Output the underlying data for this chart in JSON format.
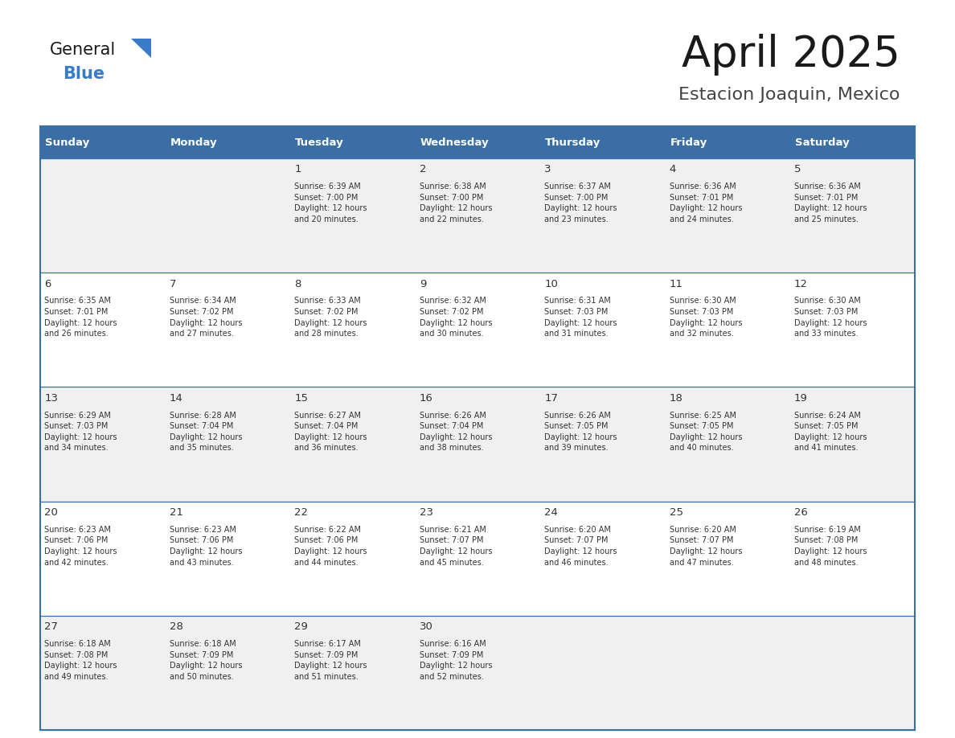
{
  "title": "April 2025",
  "subtitle": "Estacion Joaquin, Mexico",
  "header_color": "#3A6EA5",
  "header_text_color": "#FFFFFF",
  "cell_bg_even": "#F0F0F0",
  "cell_bg_odd": "#FFFFFF",
  "text_color": "#333333",
  "border_color": "#3A6EA5",
  "days_of_week": [
    "Sunday",
    "Monday",
    "Tuesday",
    "Wednesday",
    "Thursday",
    "Friday",
    "Saturday"
  ],
  "weeks": [
    [
      {
        "day": "",
        "info": ""
      },
      {
        "day": "",
        "info": ""
      },
      {
        "day": "1",
        "info": "Sunrise: 6:39 AM\nSunset: 7:00 PM\nDaylight: 12 hours\nand 20 minutes."
      },
      {
        "day": "2",
        "info": "Sunrise: 6:38 AM\nSunset: 7:00 PM\nDaylight: 12 hours\nand 22 minutes."
      },
      {
        "day": "3",
        "info": "Sunrise: 6:37 AM\nSunset: 7:00 PM\nDaylight: 12 hours\nand 23 minutes."
      },
      {
        "day": "4",
        "info": "Sunrise: 6:36 AM\nSunset: 7:01 PM\nDaylight: 12 hours\nand 24 minutes."
      },
      {
        "day": "5",
        "info": "Sunrise: 6:36 AM\nSunset: 7:01 PM\nDaylight: 12 hours\nand 25 minutes."
      }
    ],
    [
      {
        "day": "6",
        "info": "Sunrise: 6:35 AM\nSunset: 7:01 PM\nDaylight: 12 hours\nand 26 minutes."
      },
      {
        "day": "7",
        "info": "Sunrise: 6:34 AM\nSunset: 7:02 PM\nDaylight: 12 hours\nand 27 minutes."
      },
      {
        "day": "8",
        "info": "Sunrise: 6:33 AM\nSunset: 7:02 PM\nDaylight: 12 hours\nand 28 minutes."
      },
      {
        "day": "9",
        "info": "Sunrise: 6:32 AM\nSunset: 7:02 PM\nDaylight: 12 hours\nand 30 minutes."
      },
      {
        "day": "10",
        "info": "Sunrise: 6:31 AM\nSunset: 7:03 PM\nDaylight: 12 hours\nand 31 minutes."
      },
      {
        "day": "11",
        "info": "Sunrise: 6:30 AM\nSunset: 7:03 PM\nDaylight: 12 hours\nand 32 minutes."
      },
      {
        "day": "12",
        "info": "Sunrise: 6:30 AM\nSunset: 7:03 PM\nDaylight: 12 hours\nand 33 minutes."
      }
    ],
    [
      {
        "day": "13",
        "info": "Sunrise: 6:29 AM\nSunset: 7:03 PM\nDaylight: 12 hours\nand 34 minutes."
      },
      {
        "day": "14",
        "info": "Sunrise: 6:28 AM\nSunset: 7:04 PM\nDaylight: 12 hours\nand 35 minutes."
      },
      {
        "day": "15",
        "info": "Sunrise: 6:27 AM\nSunset: 7:04 PM\nDaylight: 12 hours\nand 36 minutes."
      },
      {
        "day": "16",
        "info": "Sunrise: 6:26 AM\nSunset: 7:04 PM\nDaylight: 12 hours\nand 38 minutes."
      },
      {
        "day": "17",
        "info": "Sunrise: 6:26 AM\nSunset: 7:05 PM\nDaylight: 12 hours\nand 39 minutes."
      },
      {
        "day": "18",
        "info": "Sunrise: 6:25 AM\nSunset: 7:05 PM\nDaylight: 12 hours\nand 40 minutes."
      },
      {
        "day": "19",
        "info": "Sunrise: 6:24 AM\nSunset: 7:05 PM\nDaylight: 12 hours\nand 41 minutes."
      }
    ],
    [
      {
        "day": "20",
        "info": "Sunrise: 6:23 AM\nSunset: 7:06 PM\nDaylight: 12 hours\nand 42 minutes."
      },
      {
        "day": "21",
        "info": "Sunrise: 6:23 AM\nSunset: 7:06 PM\nDaylight: 12 hours\nand 43 minutes."
      },
      {
        "day": "22",
        "info": "Sunrise: 6:22 AM\nSunset: 7:06 PM\nDaylight: 12 hours\nand 44 minutes."
      },
      {
        "day": "23",
        "info": "Sunrise: 6:21 AM\nSunset: 7:07 PM\nDaylight: 12 hours\nand 45 minutes."
      },
      {
        "day": "24",
        "info": "Sunrise: 6:20 AM\nSunset: 7:07 PM\nDaylight: 12 hours\nand 46 minutes."
      },
      {
        "day": "25",
        "info": "Sunrise: 6:20 AM\nSunset: 7:07 PM\nDaylight: 12 hours\nand 47 minutes."
      },
      {
        "day": "26",
        "info": "Sunrise: 6:19 AM\nSunset: 7:08 PM\nDaylight: 12 hours\nand 48 minutes."
      }
    ],
    [
      {
        "day": "27",
        "info": "Sunrise: 6:18 AM\nSunset: 7:08 PM\nDaylight: 12 hours\nand 49 minutes."
      },
      {
        "day": "28",
        "info": "Sunrise: 6:18 AM\nSunset: 7:09 PM\nDaylight: 12 hours\nand 50 minutes."
      },
      {
        "day": "29",
        "info": "Sunrise: 6:17 AM\nSunset: 7:09 PM\nDaylight: 12 hours\nand 51 minutes."
      },
      {
        "day": "30",
        "info": "Sunrise: 6:16 AM\nSunset: 7:09 PM\nDaylight: 12 hours\nand 52 minutes."
      },
      {
        "day": "",
        "info": ""
      },
      {
        "day": "",
        "info": ""
      },
      {
        "day": "",
        "info": ""
      }
    ]
  ],
  "logo_text_general": "General",
  "logo_text_blue": "Blue",
  "logo_color_general": "#1a1a1a",
  "logo_color_blue": "#3A7BC8",
  "logo_triangle_color": "#3A7BC8",
  "fig_width": 11.88,
  "fig_height": 9.18,
  "dpi": 100
}
